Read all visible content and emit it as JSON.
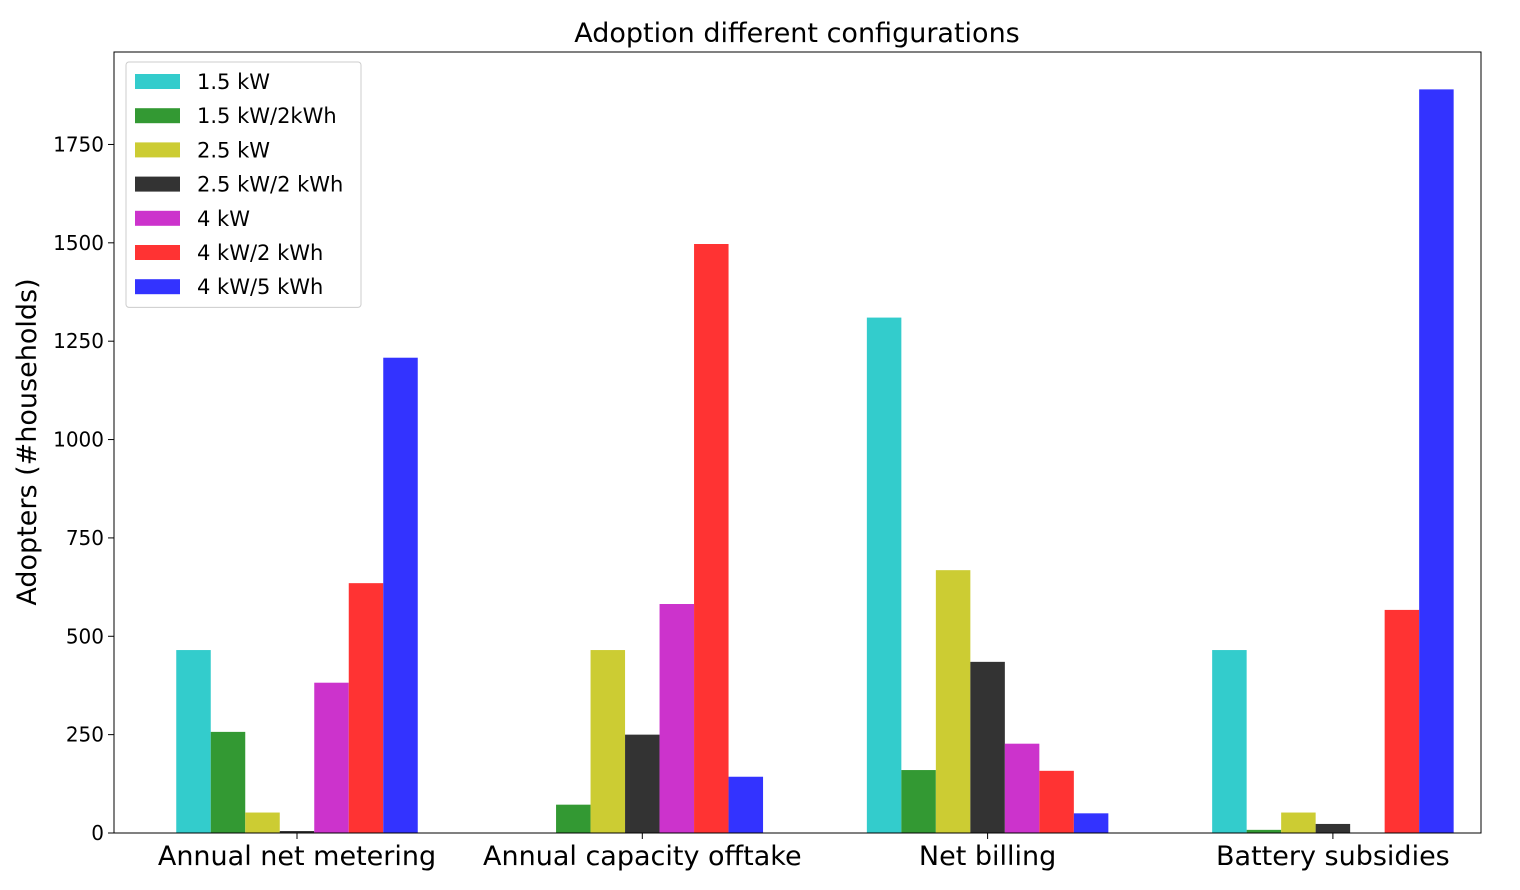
{
  "chart_data": {
    "type": "bar",
    "title": "Adoption different configurations",
    "xlabel": "",
    "ylabel": "Adopters (#households)",
    "categories": [
      "Annual net metering",
      "Annual capacity offtake",
      "Net billing",
      "Battery subsidies"
    ],
    "ylim": [
      0,
      1985
    ],
    "yticks": [
      0,
      250,
      500,
      750,
      1000,
      1250,
      1500,
      1750
    ],
    "grid": false,
    "legend_position": "top-left",
    "series": [
      {
        "name": "1.5 kW",
        "color": "#33CCCC",
        "values": [
          465,
          0,
          1310,
          465
        ]
      },
      {
        "name": "1.5 kW/2kWh",
        "color": "#339933",
        "values": [
          257,
          72,
          160,
          8
        ]
      },
      {
        "name": "2.5 kW",
        "color": "#CCCC33",
        "values": [
          52,
          465,
          668,
          52
        ]
      },
      {
        "name": "2.5 kW/2 kWh",
        "color": "#333333",
        "values": [
          5,
          250,
          435,
          23
        ]
      },
      {
        "name": "4 kW",
        "color": "#CC33CC",
        "values": [
          382,
          582,
          227,
          0
        ]
      },
      {
        "name": "4 kW/2 kWh",
        "color": "#FF3333",
        "values": [
          635,
          1497,
          158,
          567
        ]
      },
      {
        "name": "4 kW/5 kWh",
        "color": "#3333FF",
        "values": [
          1208,
          143,
          50,
          1890
        ]
      }
    ]
  }
}
